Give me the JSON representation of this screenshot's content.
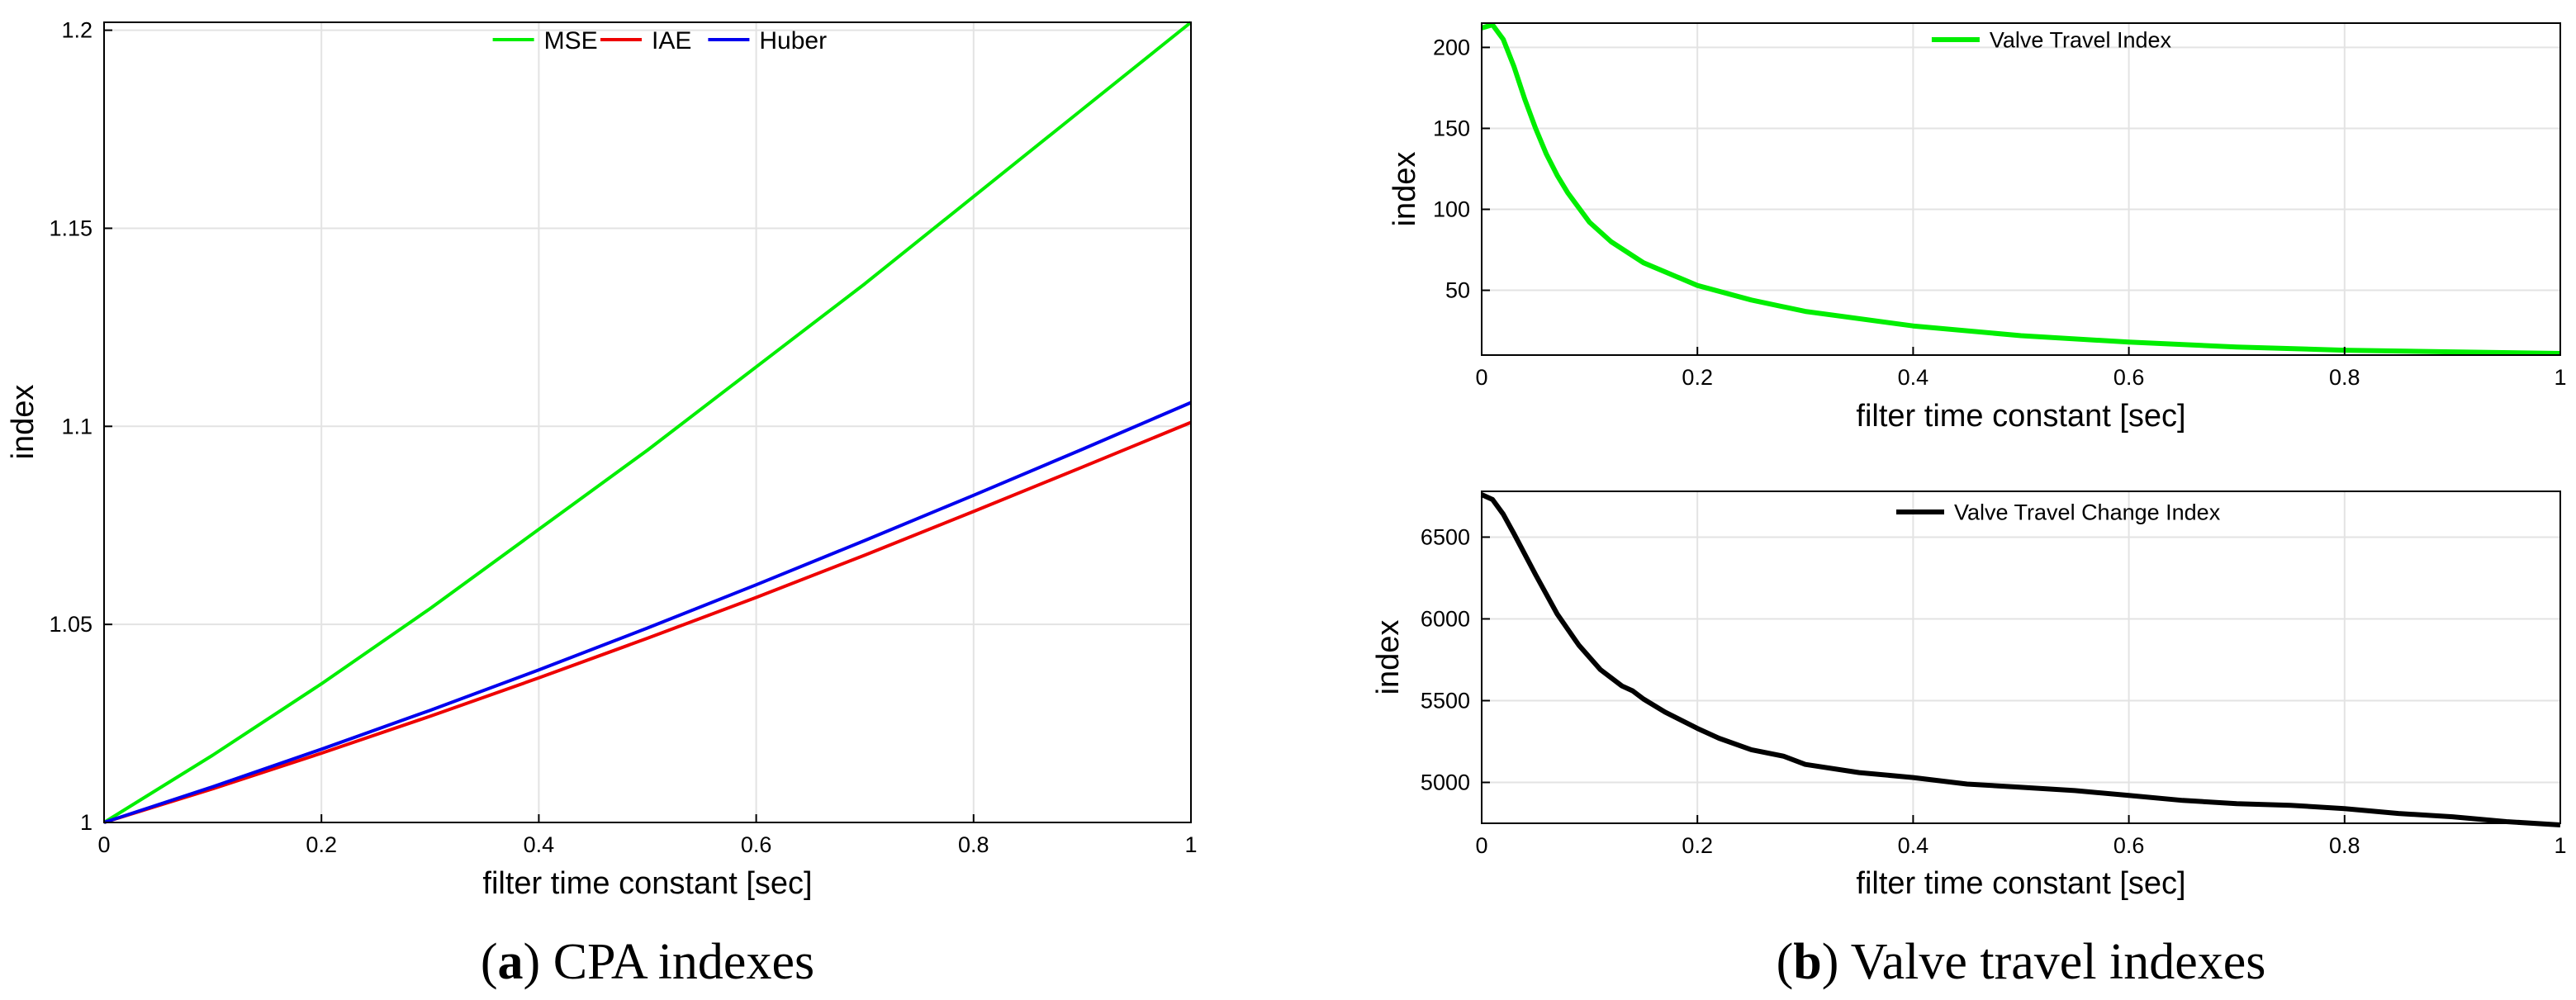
{
  "chart_data": [
    {
      "type": "line",
      "panel": "a",
      "title": "",
      "xlabel": "filter time constant [sec]",
      "ylabel": "index",
      "xlim": [
        0,
        1
      ],
      "ylim": [
        1,
        1.202
      ],
      "xticks": [
        "0",
        "0.2",
        "0.4",
        "0.6",
        "0.8",
        "1"
      ],
      "yticks": [
        "1",
        "1.05",
        "1.1",
        "1.15",
        "1.2"
      ],
      "xtick_values": [
        0,
        0.2,
        0.4,
        0.6,
        0.8,
        1
      ],
      "ytick_values": [
        1,
        1.05,
        1.1,
        1.15,
        1.2
      ],
      "grid": true,
      "legend_position": "top-center",
      "x": [
        0,
        0.1,
        0.2,
        0.3,
        0.4,
        0.5,
        0.6,
        0.7,
        0.8,
        0.9,
        1.0
      ],
      "series": [
        {
          "name": "MSE",
          "color": "#00ee00",
          "values": [
            1.0,
            1.017,
            1.035,
            1.054,
            1.074,
            1.094,
            1.115,
            1.136,
            1.158,
            1.18,
            1.202
          ]
        },
        {
          "name": "IAE",
          "color": "#ee0000",
          "values": [
            1.0,
            1.0085,
            1.0175,
            1.0268,
            1.0365,
            1.0465,
            1.0568,
            1.0675,
            1.0785,
            1.0897,
            1.101
          ]
        },
        {
          "name": "Huber",
          "color": "#0000ee",
          "values": [
            1.0,
            1.009,
            1.0185,
            1.0283,
            1.0385,
            1.0491,
            1.06,
            1.0712,
            1.0826,
            1.0942,
            1.106
          ]
        }
      ]
    },
    {
      "type": "line",
      "panel": "b-top",
      "title": "",
      "xlabel": "filter time constant [sec]",
      "ylabel": "index",
      "xlim": [
        0,
        1
      ],
      "ylim": [
        10,
        215
      ],
      "xticks": [
        "0",
        "0.2",
        "0.4",
        "0.6",
        "0.8",
        "1"
      ],
      "yticks": [
        "50",
        "100",
        "150",
        "200"
      ],
      "xtick_values": [
        0,
        0.2,
        0.4,
        0.6,
        0.8,
        1
      ],
      "ytick_values": [
        50,
        100,
        150,
        200
      ],
      "grid": true,
      "legend_position": "top-center",
      "x": [
        0,
        0.01,
        0.02,
        0.03,
        0.04,
        0.05,
        0.06,
        0.07,
        0.08,
        0.1,
        0.12,
        0.15,
        0.2,
        0.25,
        0.3,
        0.4,
        0.5,
        0.6,
        0.7,
        0.8,
        0.9,
        1.0
      ],
      "series": [
        {
          "name": "Valve Travel Index",
          "color": "#00ee00",
          "values": [
            212,
            214,
            205,
            188,
            168,
            150,
            134,
            121,
            110,
            92,
            80,
            67,
            53,
            44,
            37,
            28,
            22,
            18,
            15,
            13,
            12,
            11
          ]
        }
      ]
    },
    {
      "type": "line",
      "panel": "b-bottom",
      "title": "",
      "xlabel": "filter time constant [sec]",
      "ylabel": "index",
      "xlim": [
        0,
        1
      ],
      "ylim": [
        4750,
        6780
      ],
      "xticks": [
        "0",
        "0.2",
        "0.4",
        "0.6",
        "0.8",
        "1"
      ],
      "yticks": [
        "5000",
        "5500",
        "6000",
        "6500"
      ],
      "xtick_values": [
        0,
        0.2,
        0.4,
        0.6,
        0.8,
        1
      ],
      "ytick_values": [
        5000,
        5500,
        6000,
        6500
      ],
      "grid": true,
      "legend_position": "top-center",
      "x": [
        0,
        0.01,
        0.02,
        0.03,
        0.05,
        0.07,
        0.09,
        0.11,
        0.13,
        0.14,
        0.15,
        0.17,
        0.2,
        0.22,
        0.25,
        0.28,
        0.3,
        0.35,
        0.4,
        0.45,
        0.5,
        0.55,
        0.6,
        0.65,
        0.7,
        0.75,
        0.8,
        0.85,
        0.9,
        0.95,
        1.0
      ],
      "series": [
        {
          "name": "Valve Travel Change Index",
          "color": "#000000",
          "values": [
            6760,
            6730,
            6640,
            6520,
            6270,
            6030,
            5840,
            5690,
            5590,
            5560,
            5510,
            5430,
            5330,
            5270,
            5200,
            5160,
            5110,
            5060,
            5030,
            4990,
            4970,
            4950,
            4920,
            4890,
            4870,
            4860,
            4840,
            4810,
            4790,
            4760,
            4740
          ]
        }
      ]
    }
  ],
  "captions": {
    "a": {
      "letter": "a",
      "text": " CPA indexes"
    },
    "b": {
      "letter": "b",
      "text": " Valve travel indexes"
    }
  }
}
